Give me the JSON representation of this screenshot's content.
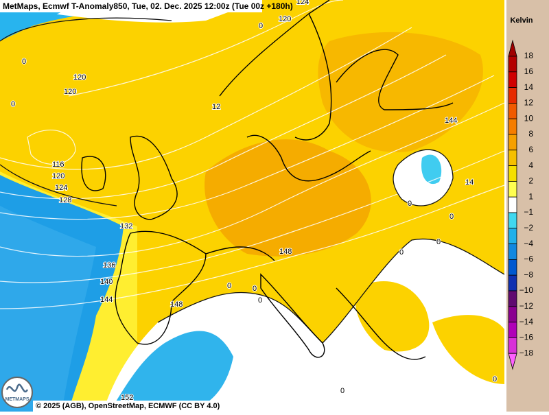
{
  "header": {
    "title": "MetMaps, Ecmwf T-Anomaly850, Tue, 02. Dec. 2025 12:00z (Tue 00z +180h)"
  },
  "footer": {
    "attribution": "© 2025 (AGB), OpenStreetMap, ECMWF (CC BY 4.0)",
    "logo": "METMAPS"
  },
  "colorbar": {
    "title": "Kelvin",
    "levels": [
      "18",
      "16",
      "14",
      "12",
      "10",
      "8",
      "6",
      "4",
      "2",
      "1",
      "−1",
      "−2",
      "−4",
      "−6",
      "−8",
      "−10",
      "−12",
      "−14",
      "−16",
      "−18"
    ],
    "colors": [
      "#a00000",
      "#b40000",
      "#d00000",
      "#e62a00",
      "#f05a00",
      "#f57d00",
      "#f5a000",
      "#f5c000",
      "#f5e000",
      "#ffff50",
      "#ffffff",
      "#40d8f0",
      "#20b0ea",
      "#1088e0",
      "#0058d0",
      "#1030b0",
      "#600a70",
      "#8a0090",
      "#b000b8",
      "#d830d8",
      "#ff60ff"
    ]
  },
  "contours": [
    "124",
    "120",
    "0",
    "0",
    "120",
    "120",
    "0",
    "12",
    "116",
    "120",
    "124",
    "128",
    "132",
    "136",
    "140",
    "144",
    "144",
    "14",
    "0",
    "0",
    "0",
    "0",
    "148",
    "0",
    "0",
    "148",
    "0",
    "0",
    "0",
    "152"
  ]
}
